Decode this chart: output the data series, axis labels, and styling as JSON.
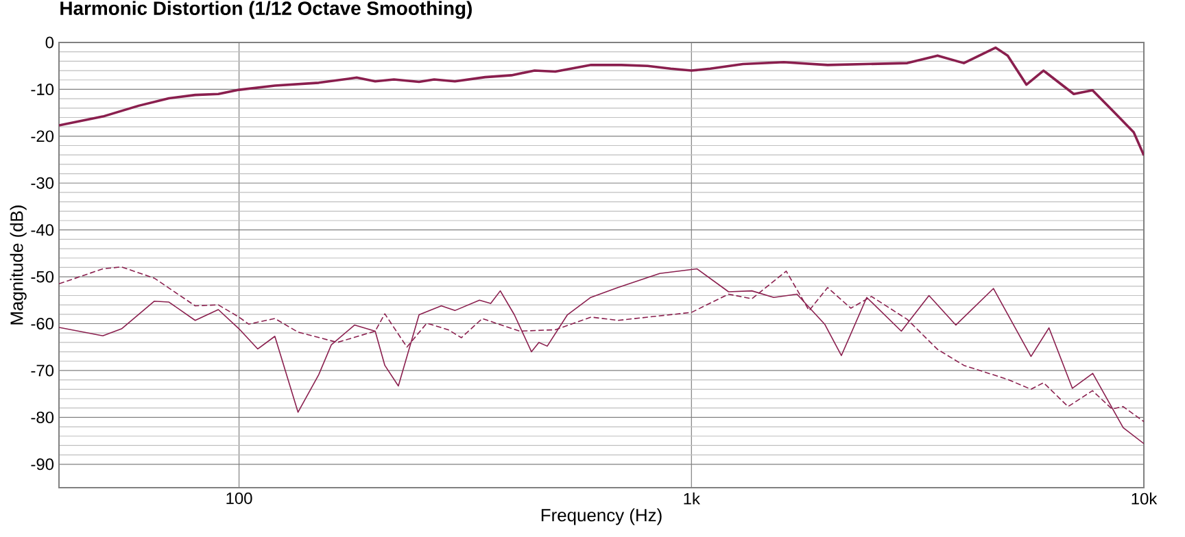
{
  "chart_data": {
    "type": "line",
    "title": "Harmonic Distortion (1/12 Octave Smoothing)",
    "xlabel": "Frequency (Hz)",
    "ylabel": "Magnitude (dB)",
    "log": "x",
    "grid": true,
    "xlim": [
      40,
      10000
    ],
    "ylim": [
      -95,
      0
    ],
    "xticks": [
      100,
      {
        "value": 1000,
        "label": "1k"
      },
      {
        "value": 10000,
        "label": "10k"
      }
    ],
    "yticks": [
      -90,
      -80,
      -70,
      -60,
      -50,
      -40,
      -30,
      -20,
      -10,
      0
    ],
    "series": [
      {
        "color": "#8a1f4e",
        "line_style": "solid",
        "x": [
          40,
          50,
          60,
          70,
          80,
          90,
          100,
          120,
          150,
          182,
          200,
          220,
          250,
          270,
          300,
          350,
          400,
          450,
          500,
          600,
          700,
          800,
          900,
          1000,
          1100,
          1300,
          1600,
          2000,
          3000,
          3500,
          4000,
          4700,
          5000,
          5500,
          6000,
          7000,
          7700,
          8500,
          9500,
          10000
        ],
        "values": [
          -17.7,
          -15.8,
          -13.5,
          -11.9,
          -11.2,
          -11.0,
          -10.1,
          -9.2,
          -8.6,
          -7.5,
          -8.3,
          -7.9,
          -8.4,
          -7.9,
          -8.3,
          -7.4,
          -7.0,
          -6.0,
          -6.2,
          -4.8,
          -4.8,
          -5.0,
          -5.6,
          -6.0,
          -5.6,
          -4.6,
          -4.2,
          -4.8,
          -4.4,
          -2.8,
          -4.4,
          -1.1,
          -2.8,
          -9.0,
          -6.0,
          -11.0,
          -10.2,
          -14.4,
          -19.2,
          -24.1
        ]
      },
      {
        "color": "#8a1f4e",
        "line_style": "solid",
        "x": [
          40,
          50,
          55,
          65,
          70,
          80,
          90,
          100,
          110,
          120,
          135,
          150,
          160,
          180,
          200,
          210,
          225,
          250,
          280,
          300,
          340,
          360,
          378,
          406,
          443,
          460,
          480,
          532,
          599,
          688,
          851,
          1028,
          1208,
          1360,
          1520,
          1711,
          1970,
          2145,
          2440,
          2910,
          3350,
          3840,
          4650,
          5630,
          6170,
          6950,
          7710,
          9000,
          10000
        ],
        "values": [
          -60.8,
          -62.6,
          -61.1,
          -55.2,
          -55.4,
          -59.3,
          -57.0,
          -61.1,
          -65.4,
          -62.7,
          -78.9,
          -70.9,
          -64.5,
          -60.3,
          -61.6,
          -68.9,
          -73.3,
          -58.1,
          -56.2,
          -57.2,
          -55.0,
          -55.7,
          -53.0,
          -58.1,
          -66.0,
          -64.0,
          -64.8,
          -58.1,
          -54.4,
          -52.3,
          -49.3,
          -48.3,
          -53.2,
          -53.0,
          -54.4,
          -53.7,
          -60.1,
          -66.8,
          -54.4,
          -61.6,
          -54.0,
          -60.3,
          -52.5,
          -67.0,
          -60.9,
          -73.8,
          -70.6,
          -82.2,
          -85.6
        ]
      },
      {
        "color": "#8a1f4e",
        "line_style": "dashed",
        "x": [
          40,
          50,
          55,
          65,
          80,
          90,
          100,
          105,
          120,
          135,
          165,
          200,
          210,
          235,
          260,
          290,
          310,
          345,
          380,
          417,
          500,
          600,
          688,
          1000,
          1208,
          1360,
          1620,
          1820,
          2000,
          2250,
          2500,
          3000,
          3500,
          4000,
          5000,
          5630,
          6000,
          6800,
          7700,
          8500,
          9000,
          10000
        ],
        "values": [
          -51.5,
          -48.3,
          -47.9,
          -50.3,
          -56.2,
          -56.0,
          -58.6,
          -60.1,
          -58.9,
          -61.8,
          -64.0,
          -61.6,
          -57.9,
          -65.0,
          -59.9,
          -61.3,
          -63.0,
          -58.9,
          -60.3,
          -61.6,
          -61.3,
          -58.6,
          -59.3,
          -57.6,
          -53.7,
          -54.7,
          -48.8,
          -57.2,
          -52.3,
          -56.7,
          -54.2,
          -59.1,
          -65.5,
          -68.9,
          -71.9,
          -74.0,
          -72.6,
          -77.7,
          -74.3,
          -78.2,
          -77.7,
          -80.9
        ]
      }
    ]
  }
}
